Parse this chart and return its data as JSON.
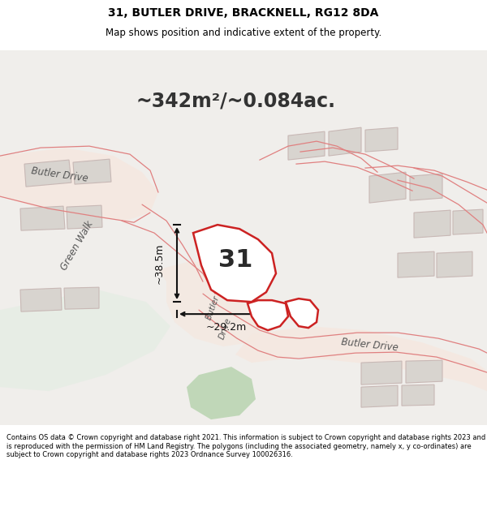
{
  "title_line1": "31, BUTLER DRIVE, BRACKNELL, RG12 8DA",
  "title_line2": "Map shows position and indicative extent of the property.",
  "area_text": "~342m²/~0.084ac.",
  "label_38m": "~38.5m",
  "label_29m": "~29.2m",
  "label_31": "31",
  "footer_text": "Contains OS data © Crown copyright and database right 2021. This information is subject to Crown copyright and database rights 2023 and is reproduced with the permission of HM Land Registry. The polygons (including the associated geometry, namely x, y co-ordinates) are subject to Crown copyright and database rights 2023 Ordnance Survey 100026316.",
  "bg_map": "#f0eeeb",
  "bg_white": "#ffffff",
  "road_fill": "#f5e8e0",
  "road_line": "#e08080",
  "building_fill": "#d8d4cf",
  "building_edge": "#c0b8b0",
  "plot_fill": "#ffffff",
  "plot_edge": "#cc2222",
  "green_fill": "#c8dbc0",
  "green_area": "#ddeedd",
  "dim_line_color": "#111111",
  "text_color": "#333333",
  "road_label_color": "#555555",
  "title_fontsize": 10,
  "subtitle_fontsize": 8.5,
  "area_fontsize": 17,
  "label_fontsize": 9,
  "building_label_fontsize": 8
}
